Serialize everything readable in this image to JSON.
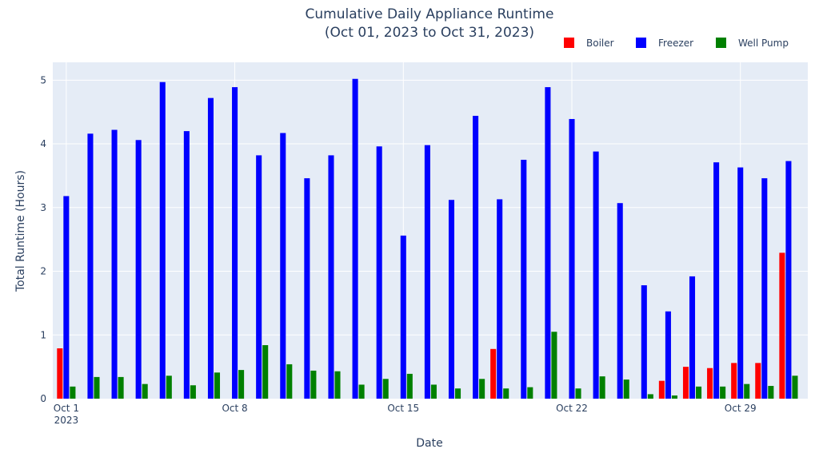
{
  "chart_data": {
    "type": "bar",
    "title": "Cumulative Daily Appliance Runtime",
    "subtitle": "(Oct 01, 2023 to Oct 31, 2023)",
    "xlabel": "Date",
    "ylabel": "Total Runtime (Hours)",
    "ylim": [
      0,
      5.28
    ],
    "xlim_days": [
      0.44,
      31.8
    ],
    "yticks": [
      0,
      1,
      2,
      3,
      4,
      5
    ],
    "xticks": [
      {
        "day": 1,
        "label": "Oct 1",
        "sub": "2023"
      },
      {
        "day": 8,
        "label": "Oct 8"
      },
      {
        "day": 15,
        "label": "Oct 15"
      },
      {
        "day": 22,
        "label": "Oct 22"
      },
      {
        "day": 29,
        "label": "Oct 29"
      }
    ],
    "legend_position": "top-right",
    "grid": true,
    "days": [
      1,
      2,
      3,
      4,
      5,
      6,
      7,
      8,
      9,
      10,
      11,
      12,
      13,
      14,
      15,
      16,
      17,
      18,
      19,
      20,
      21,
      22,
      23,
      24,
      25,
      26,
      27,
      28,
      29,
      30,
      31
    ],
    "series": [
      {
        "name": "Boiler",
        "color": "#ff0000",
        "values": [
          0.79,
          0,
          0,
          0,
          0,
          0,
          0,
          0,
          0,
          0,
          0,
          0,
          0,
          0,
          0,
          0,
          0,
          0,
          0.78,
          0,
          0,
          0,
          0,
          0,
          0,
          0.28,
          0.5,
          0.48,
          0.56,
          0.56,
          2.29
        ]
      },
      {
        "name": "Freezer",
        "color": "#0000ff",
        "values": [
          3.18,
          4.16,
          4.22,
          4.06,
          4.97,
          4.2,
          4.72,
          4.89,
          3.82,
          4.17,
          3.46,
          3.82,
          5.02,
          3.96,
          2.56,
          3.98,
          3.12,
          4.44,
          3.13,
          3.75,
          4.89,
          4.39,
          3.88,
          3.07,
          1.78,
          1.37,
          1.92,
          3.71,
          3.63,
          3.46,
          3.73
        ]
      },
      {
        "name": "Well Pump",
        "color": "#008000",
        "values": [
          0.19,
          0.34,
          0.34,
          0.23,
          0.36,
          0.21,
          0.41,
          0.45,
          0.84,
          0.54,
          0.44,
          0.43,
          0.22,
          0.31,
          0.39,
          0.22,
          0.16,
          0.31,
          0.16,
          0.18,
          1.05,
          0.16,
          0.35,
          0.3,
          0.07,
          0.05,
          0.19,
          0.19,
          0.23,
          0.2,
          0.36
        ]
      }
    ]
  }
}
